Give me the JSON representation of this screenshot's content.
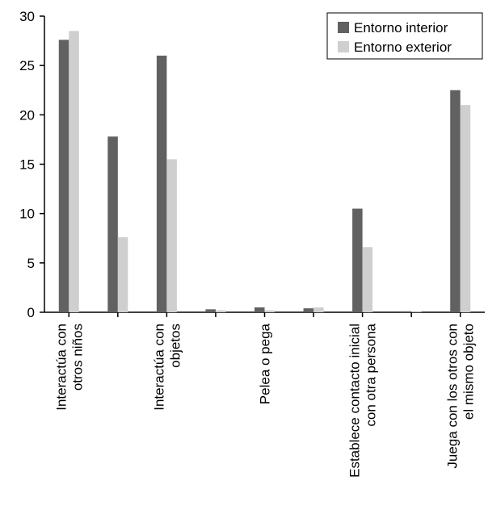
{
  "chart_data": {
    "type": "bar",
    "categories": [
      [
        "Interactúa con",
        "otros niños"
      ],
      [],
      [
        "Interactúa con",
        "objetos"
      ],
      [],
      [
        "Pelea o pega"
      ],
      [],
      [
        "Establece contacto inicial",
        "con otra persona"
      ],
      [],
      [
        "Juega con los otros con",
        "el mismo objeto"
      ]
    ],
    "series": [
      {
        "name": "Entorno interior",
        "color": "#616161",
        "values": [
          27.6,
          17.8,
          26.0,
          0.3,
          0.5,
          0.4,
          10.5,
          0.1,
          22.5
        ]
      },
      {
        "name": "Entorno exterior",
        "color": "#cfcfcf",
        "values": [
          28.5,
          7.6,
          15.5,
          0.2,
          0.2,
          0.5,
          6.6,
          0.05,
          21.0
        ]
      }
    ],
    "ylim": [
      0,
      30
    ],
    "yticks": [
      0,
      5,
      10,
      15,
      20,
      25,
      30
    ],
    "legend_position": "top-right",
    "grid": false
  }
}
